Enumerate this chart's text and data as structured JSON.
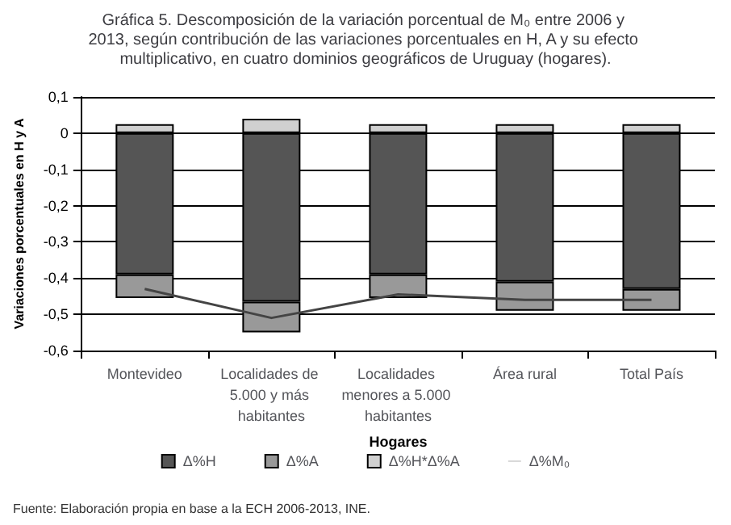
{
  "chart_data": {
    "type": "bar",
    "stacked": true,
    "title": "Gráfica 5. Descomposición de la variación porcentual de M₀ entre 2006 y 2013, según contribución de las variaciones porcentuales en H, A y su efecto multiplicativo, en cuatro dominios geográficos de Uruguay (hogares).",
    "xlabel": "Hogares",
    "ylabel": "Variaciones porcentuales en H y A",
    "categories": [
      "Montevideo",
      "Localidades de 5.000 y más habitantes",
      "Localidades menores a 5.000 habitantes",
      "Área rural",
      "Total País"
    ],
    "series": [
      {
        "name": "Δ%H",
        "color": "#555555",
        "values": [
          -0.39,
          -0.465,
          -0.39,
          -0.41,
          -0.43
        ]
      },
      {
        "name": "Δ%A",
        "color": "#999999",
        "values": [
          -0.065,
          -0.085,
          -0.065,
          -0.08,
          -0.06
        ]
      },
      {
        "name": "Δ%H*Δ%A",
        "color": "#d0d0d0",
        "values": [
          0.025,
          0.04,
          0.025,
          0.025,
          0.025
        ]
      },
      {
        "name": "Δ%M₀",
        "type": "line",
        "color": "#444444",
        "values": [
          -0.43,
          -0.51,
          -0.445,
          -0.46,
          -0.46
        ]
      }
    ],
    "ylim": [
      -0.6,
      0.1
    ],
    "yticks": [
      {
        "value": -0.6,
        "label": "-0,6"
      },
      {
        "value": -0.5,
        "label": "-0,5"
      },
      {
        "value": -0.4,
        "label": "-0,4"
      },
      {
        "value": -0.3,
        "label": "-0,3"
      },
      {
        "value": -0.2,
        "label": "-0,2"
      },
      {
        "value": -0.1,
        "label": "-0,1"
      },
      0,
      {
        "value": 0.1,
        "label": "0,1"
      }
    ],
    "grid": "y",
    "legend": "bottom",
    "marker": "none",
    "annotations": [
      "Fuente: Elaboración propia en base a la ECH 2006-2013, INE."
    ]
  }
}
